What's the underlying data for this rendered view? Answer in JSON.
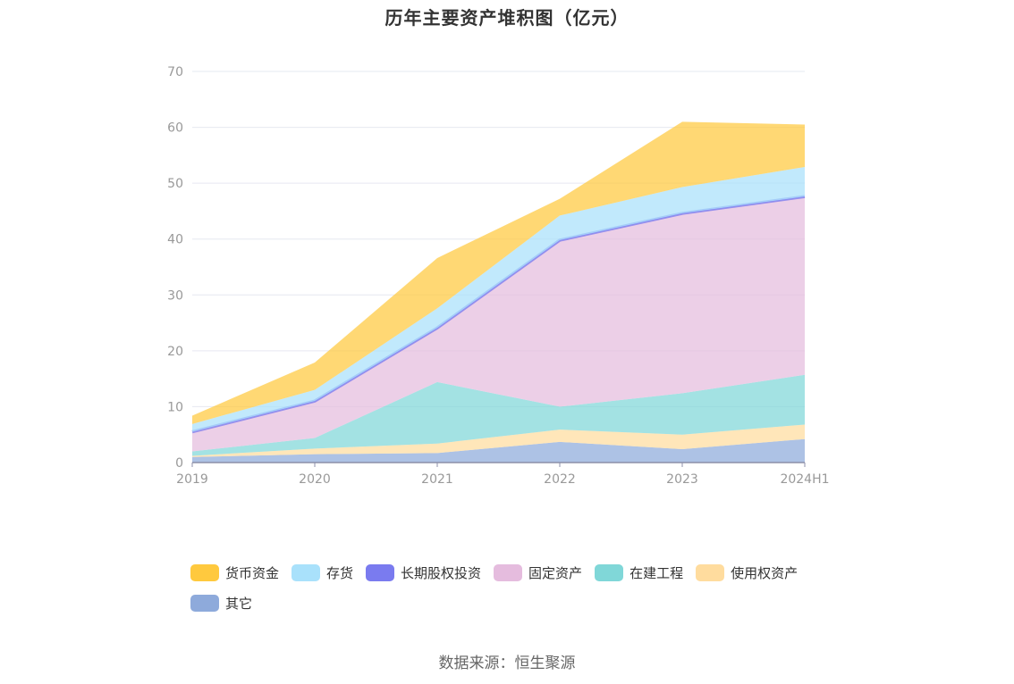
{
  "chart_data": {
    "type": "area",
    "stacked": true,
    "title": "历年主要资产堆积图（亿元）",
    "categories": [
      "2019",
      "2020",
      "2021",
      "2022",
      "2023",
      "2024H1"
    ],
    "ylim": [
      0,
      70
    ],
    "yticks": [
      "0",
      "10",
      "20",
      "30",
      "40",
      "50",
      "60",
      "70"
    ],
    "grid": true,
    "legend_position": "bottom",
    "series": [
      {
        "name": "其它",
        "color": "#8eaadb",
        "values": [
          1.0,
          1.5,
          1.7,
          3.7,
          2.4,
          4.2
        ]
      },
      {
        "name": "使用权资产",
        "color": "#ffdc9e",
        "values": [
          0.2,
          1.0,
          1.7,
          2.2,
          2.6,
          2.6
        ]
      },
      {
        "name": "在建工程",
        "color": "#80d7d8",
        "values": [
          0.8,
          1.9,
          11.0,
          4.1,
          7.4,
          8.9
        ]
      },
      {
        "name": "固定资产",
        "color": "#e5bcde",
        "values": [
          3.5,
          6.5,
          9.6,
          29.7,
          32.1,
          31.8
        ]
      },
      {
        "name": "长期股权投资",
        "color": "#7a7bef",
        "values": [
          0.0,
          0.1,
          0.1,
          0.1,
          0.1,
          0.1
        ]
      },
      {
        "name": "存货",
        "color": "#a9e1fb",
        "values": [
          1.4,
          2.0,
          3.5,
          4.4,
          4.7,
          5.3
        ]
      },
      {
        "name": "货币资金",
        "color": "#ffc93e",
        "values": [
          1.5,
          4.9,
          9.0,
          3.0,
          11.7,
          7.6
        ]
      }
    ],
    "legend_order": [
      "货币资金",
      "存货",
      "长期股权投资",
      "固定资产",
      "在建工程",
      "使用权资产",
      "其它"
    ]
  },
  "source_text": "数据来源：恒生聚源"
}
